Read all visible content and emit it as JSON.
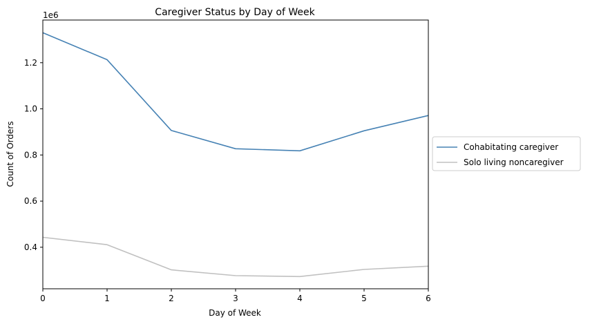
{
  "chart_data": {
    "type": "line",
    "title": "Caregiver Status by Day of Week",
    "xlabel": "Day of Week",
    "ylabel": "Count of Orders",
    "y_offset_label": "1e6",
    "x": [
      0,
      1,
      2,
      3,
      4,
      5,
      6
    ],
    "xlim": [
      0,
      6
    ],
    "ylim": [
      220000,
      1385000
    ],
    "xticks": [
      0,
      1,
      2,
      3,
      4,
      5,
      6
    ],
    "xtick_labels": [
      "0",
      "1",
      "2",
      "3",
      "4",
      "5",
      "6"
    ],
    "yticks": [
      400000,
      600000,
      800000,
      1000000,
      1200000
    ],
    "ytick_labels": [
      "0.4",
      "0.6",
      "0.8",
      "1.0",
      "1.2"
    ],
    "grid": false,
    "legend_position": "right, outside",
    "series": [
      {
        "name": "Cohabitating caregiver",
        "color": "#4682b4",
        "values": [
          1330000,
          1213000,
          906000,
          827000,
          818000,
          905000,
          971000
        ]
      },
      {
        "name": "Solo living noncaregiver",
        "color": "#c0c0c0",
        "values": [
          443000,
          411000,
          302000,
          277000,
          273000,
          304000,
          318000
        ]
      }
    ]
  }
}
